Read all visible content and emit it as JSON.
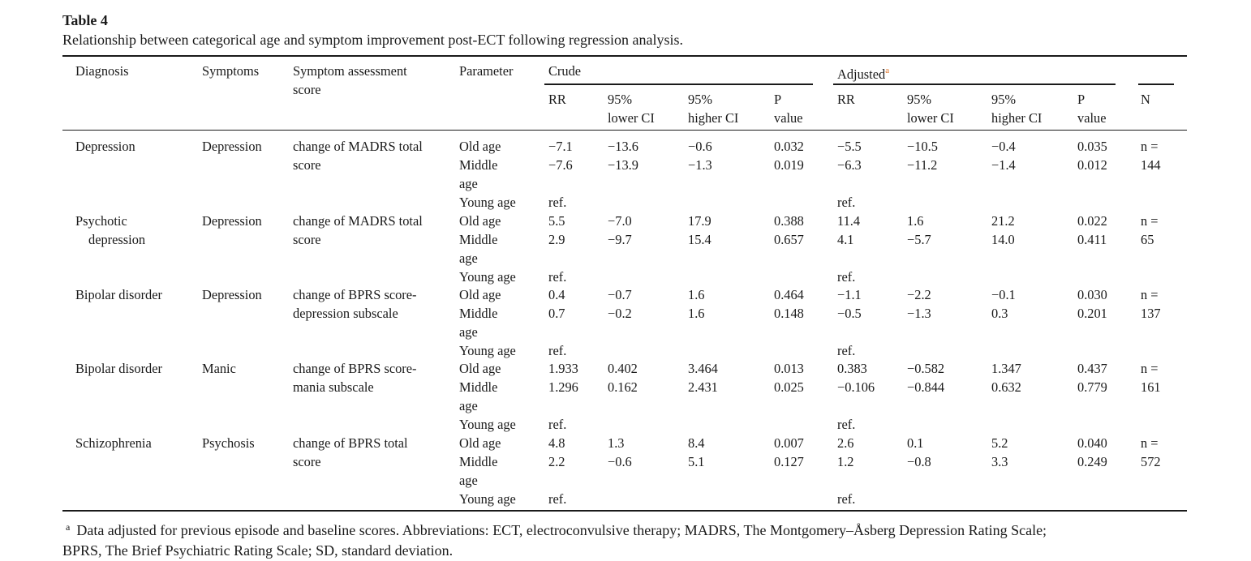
{
  "table": {
    "number": "Table 4",
    "caption": "Relationship between categorical age and symptom improvement post-ECT following regression analysis.",
    "headers": {
      "diagnosis": "Diagnosis",
      "symptoms": "Symptoms",
      "score_line1": "Symptom assessment",
      "score_line2": "score",
      "parameter": "Parameter",
      "crude": "Crude",
      "adjusted": "Adjusted",
      "adjusted_mark": "a",
      "rr": "RR",
      "lower_1": "95%",
      "lower_2": "lower CI",
      "higher_1": "95%",
      "higher_2": "higher CI",
      "p_1": "P",
      "p_2": "value",
      "n": "N"
    },
    "groups": [
      {
        "diagnosis": [
          "Depression"
        ],
        "symptoms": "Depression",
        "score": [
          "change of MADRS total",
          "score"
        ],
        "n": [
          "n =",
          "144"
        ],
        "rows": [
          {
            "param": [
              "Old age"
            ],
            "crude": [
              "−7.1",
              "−13.6",
              "−0.6",
              "0.032"
            ],
            "adj": [
              "−5.5",
              "−10.5",
              "−0.4",
              "0.035"
            ]
          },
          {
            "param": [
              "Middle",
              "age"
            ],
            "crude": [
              "−7.6",
              "−13.9",
              "−1.3",
              "0.019"
            ],
            "adj": [
              "−6.3",
              "−11.2",
              "−1.4",
              "0.012"
            ]
          },
          {
            "param": [
              "Young age"
            ],
            "crude": [
              "ref.",
              "",
              "",
              ""
            ],
            "adj": [
              "ref.",
              "",
              "",
              ""
            ]
          }
        ]
      },
      {
        "diagnosis": [
          "Psychotic",
          "depression"
        ],
        "symptoms": "Depression",
        "score": [
          "change of MADRS total",
          "score"
        ],
        "n": [
          "n =",
          "65"
        ],
        "rows": [
          {
            "param": [
              "Old age"
            ],
            "crude": [
              "5.5",
              "−7.0",
              "17.9",
              "0.388"
            ],
            "adj": [
              "11.4",
              "1.6",
              "21.2",
              "0.022"
            ]
          },
          {
            "param": [
              "Middle",
              "age"
            ],
            "crude": [
              "2.9",
              "−9.7",
              "15.4",
              "0.657"
            ],
            "adj": [
              "4.1",
              "−5.7",
              "14.0",
              "0.411"
            ]
          },
          {
            "param": [
              "Young age"
            ],
            "crude": [
              "ref.",
              "",
              "",
              ""
            ],
            "adj": [
              "ref.",
              "",
              "",
              ""
            ]
          }
        ]
      },
      {
        "diagnosis": [
          "Bipolar disorder"
        ],
        "symptoms": "Depression",
        "score": [
          "change of BPRS score-",
          "depression subscale"
        ],
        "n": [
          "n =",
          "137"
        ],
        "rows": [
          {
            "param": [
              "Old age"
            ],
            "crude": [
              "0.4",
              "−0.7",
              "1.6",
              "0.464"
            ],
            "adj": [
              "−1.1",
              "−2.2",
              "−0.1",
              "0.030"
            ]
          },
          {
            "param": [
              "Middle",
              "age"
            ],
            "crude": [
              "0.7",
              "−0.2",
              "1.6",
              "0.148"
            ],
            "adj": [
              "−0.5",
              "−1.3",
              "0.3",
              "0.201"
            ]
          },
          {
            "param": [
              "Young age"
            ],
            "crude": [
              "ref.",
              "",
              "",
              ""
            ],
            "adj": [
              "ref.",
              "",
              "",
              ""
            ]
          }
        ]
      },
      {
        "diagnosis": [
          "Bipolar disorder"
        ],
        "symptoms": "Manic",
        "score": [
          "change of BPRS score-",
          "mania subscale"
        ],
        "n": [
          "n =",
          "161"
        ],
        "rows": [
          {
            "param": [
              "Old age"
            ],
            "crude": [
              "1.933",
              "0.402",
              "3.464",
              "0.013"
            ],
            "adj": [
              "0.383",
              "−0.582",
              "1.347",
              "0.437"
            ]
          },
          {
            "param": [
              "Middle",
              "age"
            ],
            "crude": [
              "1.296",
              "0.162",
              "2.431",
              "0.025"
            ],
            "adj": [
              "−0.106",
              "−0.844",
              "0.632",
              "0.779"
            ]
          },
          {
            "param": [
              "Young age"
            ],
            "crude": [
              "ref.",
              "",
              "",
              ""
            ],
            "adj": [
              "ref.",
              "",
              "",
              ""
            ]
          }
        ]
      },
      {
        "diagnosis": [
          "Schizophrenia"
        ],
        "symptoms": "Psychosis",
        "score": [
          "change of BPRS total",
          "score"
        ],
        "n": [
          "n =",
          "572"
        ],
        "rows": [
          {
            "param": [
              "Old age"
            ],
            "crude": [
              "4.8",
              "1.3",
              "8.4",
              "0.007"
            ],
            "adj": [
              "2.6",
              "0.1",
              "5.2",
              "0.040"
            ]
          },
          {
            "param": [
              "Middle",
              "age"
            ],
            "crude": [
              "2.2",
              "−0.6",
              "5.1",
              "0.127"
            ],
            "adj": [
              "1.2",
              "−0.8",
              "3.3",
              "0.249"
            ]
          },
          {
            "param": [
              "Young age"
            ],
            "crude": [
              "ref.",
              "",
              "",
              ""
            ],
            "adj": [
              "ref.",
              "",
              "",
              ""
            ]
          }
        ]
      }
    ],
    "footnote": {
      "mark": "a",
      "line1": "Data adjusted for previous episode and baseline scores. Abbreviations: ECT, electroconvulsive therapy; MADRS, The Montgomery–Åsberg Depression Rating Scale;",
      "line2": "BPRS, The Brief Psychiatric Rating Scale; SD, standard deviation."
    }
  }
}
